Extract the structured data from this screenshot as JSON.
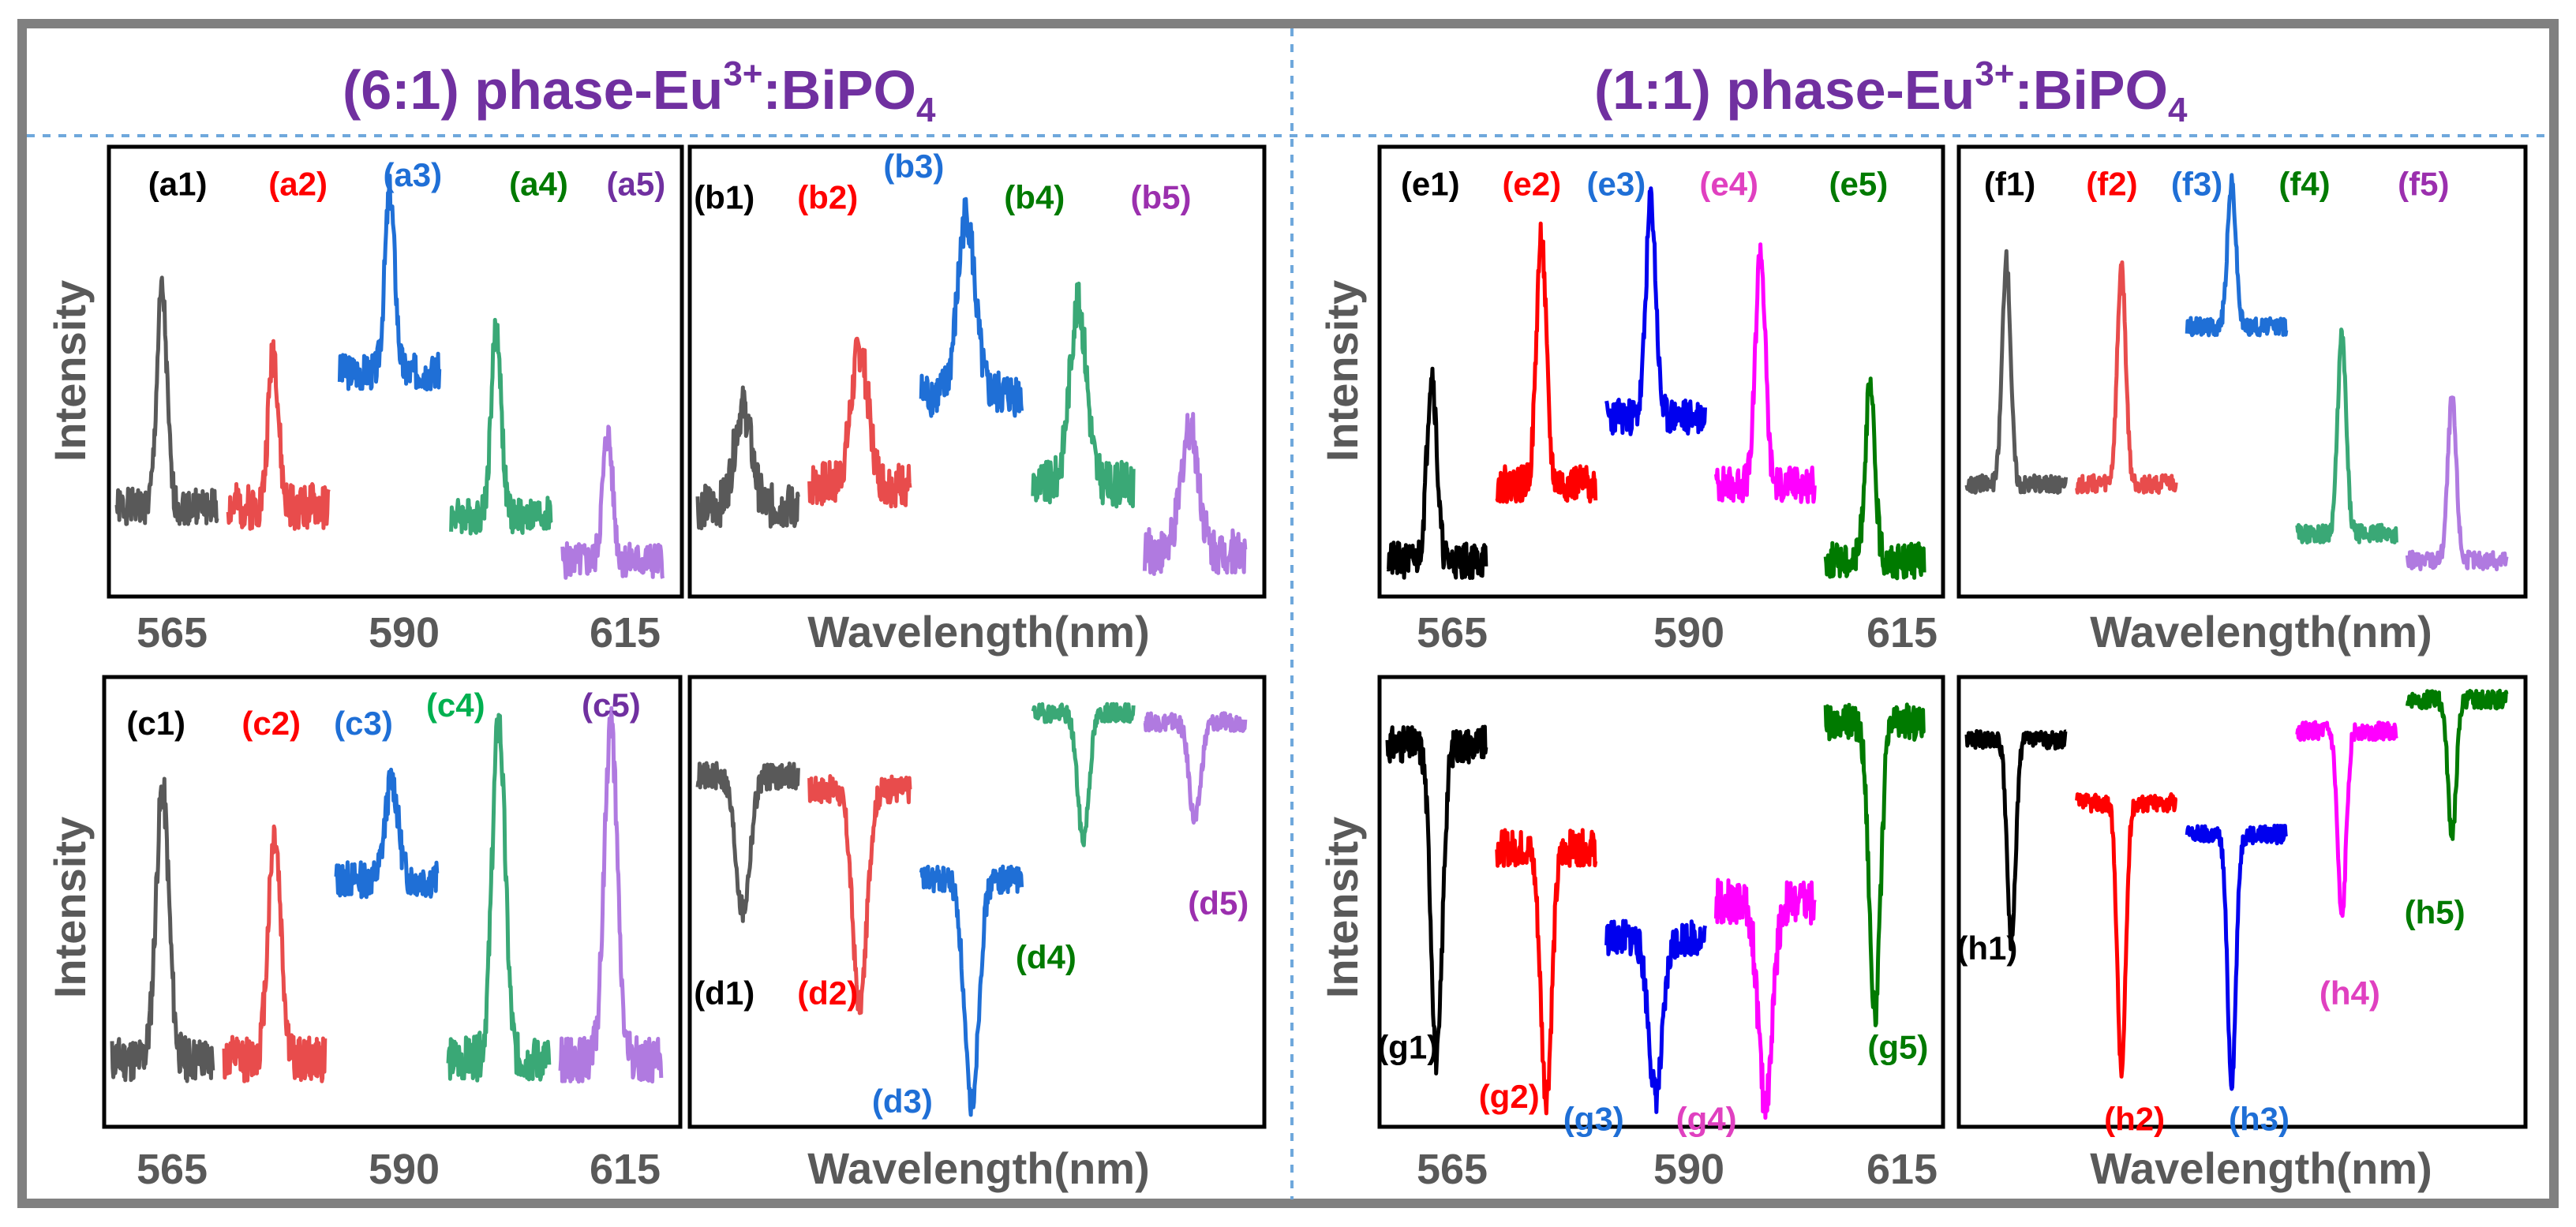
{
  "titles": {
    "left": {
      "prefix": "(6:1) phase-Eu",
      "sup": "3+",
      "mid": ":BiPO",
      "sub": "4"
    },
    "right": {
      "prefix": "(1:1) phase-Eu",
      "sup": "3+",
      "mid": ":BiPO",
      "sub": "4"
    }
  },
  "colors": {
    "title": "#7030a0",
    "frame": "#808080",
    "divider": "#6fa8dc",
    "axis_text": "#595959",
    "black": "#595959",
    "red": "#e84c4c",
    "blue": "#1f6fd6",
    "green": "#3aa876",
    "purple": "#b07ae0",
    "pureBlack": "#000000",
    "pureRed": "#ff0000",
    "pureBlue": "#0000ee",
    "magenta": "#ff00ff",
    "darkGreen": "#007a00"
  },
  "axis": {
    "ylabel": "Intensity",
    "xticks": [
      "565",
      "590",
      "615"
    ],
    "xlabel": "Wavelength(nm)"
  },
  "chart_data": {
    "type": "line",
    "x_unit": "relative index",
    "y_unit": "normalized intensity (0 = panel bottom, 1 = panel top)",
    "panels": [
      {
        "id": "a",
        "series": [
          {
            "name": "(a1)",
            "label_color": "#000000",
            "color": "#595959",
            "kind": "peak",
            "base": 0.2,
            "amp": 0.48,
            "pos": 0.45,
            "width": 0.07,
            "noise": 0.04,
            "seed": 1
          },
          {
            "name": "(a2)",
            "label_color": "#ff0000",
            "color": "#e84c4c",
            "kind": "peak",
            "base": 0.2,
            "amp": 0.35,
            "pos": 0.45,
            "width": 0.07,
            "noise": 0.05,
            "seed": 2
          },
          {
            "name": "(a3)",
            "label_color": "#1f6fd6",
            "color": "#1f6fd6",
            "kind": "peak",
            "base": 0.5,
            "amp": 0.4,
            "pos": 0.5,
            "width": 0.07,
            "noise": 0.04,
            "seed": 3
          },
          {
            "name": "(a4)",
            "label_color": "#007a00",
            "color": "#3aa876",
            "kind": "peak",
            "base": 0.18,
            "amp": 0.42,
            "pos": 0.45,
            "width": 0.07,
            "noise": 0.04,
            "seed": 4
          },
          {
            "name": "(a5)",
            "label_color": "#7030a0",
            "color": "#b07ae0",
            "kind": "peak",
            "base": 0.08,
            "amp": 0.28,
            "pos": 0.45,
            "width": 0.07,
            "noise": 0.04,
            "seed": 5
          }
        ]
      },
      {
        "id": "b",
        "series": [
          {
            "name": "(b1)",
            "label_color": "#000000",
            "color": "#595959",
            "kind": "peak",
            "base": 0.2,
            "amp": 0.22,
            "pos": 0.45,
            "width": 0.12,
            "noise": 0.05,
            "seed": 6
          },
          {
            "name": "(b2)",
            "label_color": "#ff0000",
            "color": "#e84c4c",
            "kind": "peak",
            "base": 0.25,
            "amp": 0.3,
            "pos": 0.5,
            "width": 0.12,
            "noise": 0.05,
            "seed": 7
          },
          {
            "name": "(b3)",
            "label_color": "#1f6fd6",
            "color": "#1f6fd6",
            "kind": "peak",
            "base": 0.45,
            "amp": 0.4,
            "pos": 0.45,
            "width": 0.12,
            "noise": 0.05,
            "seed": 8
          },
          {
            "name": "(b4)",
            "label_color": "#007a00",
            "color": "#3aa876",
            "kind": "peak",
            "base": 0.25,
            "amp": 0.4,
            "pos": 0.45,
            "width": 0.12,
            "noise": 0.05,
            "seed": 9
          },
          {
            "name": "(b5)",
            "label_color": "#9b2fae",
            "color": "#b07ae0",
            "kind": "peak",
            "base": 0.1,
            "amp": 0.28,
            "pos": 0.45,
            "width": 0.12,
            "noise": 0.05,
            "seed": 10
          }
        ]
      },
      {
        "id": "c",
        "series": [
          {
            "name": "(c1)",
            "label_color": "#000000",
            "color": "#595959",
            "kind": "peak",
            "base": 0.15,
            "amp": 0.6,
            "pos": 0.5,
            "width": 0.09,
            "noise": 0.05,
            "seed": 11
          },
          {
            "name": "(c2)",
            "label_color": "#ff0000",
            "color": "#e84c4c",
            "kind": "peak",
            "base": 0.15,
            "amp": 0.5,
            "pos": 0.5,
            "width": 0.09,
            "noise": 0.05,
            "seed": 12
          },
          {
            "name": "(c3)",
            "label_color": "#1f6fd6",
            "color": "#1f6fd6",
            "kind": "peak",
            "base": 0.55,
            "amp": 0.22,
            "pos": 0.55,
            "width": 0.09,
            "noise": 0.04,
            "seed": 13
          },
          {
            "name": "(c4)",
            "label_color": "#00b050",
            "color": "#3aa876",
            "kind": "peak",
            "base": 0.15,
            "amp": 0.75,
            "pos": 0.5,
            "width": 0.09,
            "noise": 0.05,
            "seed": 14
          },
          {
            "name": "(c5)",
            "label_color": "#7030a0",
            "color": "#b07ae0",
            "kind": "peak",
            "base": 0.15,
            "amp": 0.75,
            "pos": 0.5,
            "width": 0.09,
            "noise": 0.05,
            "seed": 15
          }
        ]
      },
      {
        "id": "d",
        "series": [
          {
            "name": "(d1)",
            "label_color": "#000000",
            "color": "#595959",
            "kind": "dip",
            "base": 0.78,
            "amp": 0.3,
            "pos": 0.45,
            "width": 0.1,
            "noise": 0.03,
            "seed": 16
          },
          {
            "name": "(d2)",
            "label_color": "#ff0000",
            "color": "#e84c4c",
            "kind": "dip",
            "base": 0.75,
            "amp": 0.48,
            "pos": 0.5,
            "width": 0.1,
            "noise": 0.03,
            "seed": 17
          },
          {
            "name": "(d3)",
            "label_color": "#1f6fd6",
            "color": "#1f6fd6",
            "kind": "dip",
            "base": 0.55,
            "amp": 0.5,
            "pos": 0.5,
            "width": 0.1,
            "noise": 0.03,
            "seed": 18
          },
          {
            "name": "(d4)",
            "label_color": "#007a00",
            "color": "#3aa876",
            "kind": "dip",
            "base": 0.92,
            "amp": 0.28,
            "pos": 0.5,
            "width": 0.08,
            "noise": 0.02,
            "seed": 19
          },
          {
            "name": "(d5)",
            "label_color": "#9b2fae",
            "color": "#b07ae0",
            "kind": "dip",
            "base": 0.9,
            "amp": 0.22,
            "pos": 0.5,
            "width": 0.08,
            "noise": 0.02,
            "seed": 20
          }
        ]
      },
      {
        "id": "e",
        "series": [
          {
            "name": "(e1)",
            "label_color": "#000000",
            "color": "#000000",
            "kind": "peak",
            "base": 0.08,
            "amp": 0.42,
            "pos": 0.45,
            "width": 0.07,
            "noise": 0.04,
            "seed": 21
          },
          {
            "name": "(e2)",
            "label_color": "#ff0000",
            "color": "#ff0000",
            "kind": "peak",
            "base": 0.25,
            "amp": 0.55,
            "pos": 0.45,
            "width": 0.07,
            "noise": 0.04,
            "seed": 22
          },
          {
            "name": "(e3)",
            "label_color": "#1f6fd6",
            "color": "#0000ee",
            "kind": "peak",
            "base": 0.4,
            "amp": 0.48,
            "pos": 0.45,
            "width": 0.07,
            "noise": 0.04,
            "seed": 23
          },
          {
            "name": "(e4)",
            "label_color": "#e040c0",
            "color": "#ff00ff",
            "kind": "peak",
            "base": 0.25,
            "amp": 0.52,
            "pos": 0.45,
            "width": 0.07,
            "noise": 0.04,
            "seed": 24
          },
          {
            "name": "(e5)",
            "label_color": "#007a00",
            "color": "#007a00",
            "kind": "peak",
            "base": 0.08,
            "amp": 0.38,
            "pos": 0.45,
            "width": 0.07,
            "noise": 0.04,
            "seed": 25
          }
        ]
      },
      {
        "id": "f",
        "series": [
          {
            "name": "(f1)",
            "label_color": "#000000",
            "color": "#595959",
            "kind": "peak",
            "base": 0.25,
            "amp": 0.5,
            "pos": 0.4,
            "width": 0.06,
            "noise": 0.02,
            "seed": 26
          },
          {
            "name": "(f2)",
            "label_color": "#ff0000",
            "color": "#e84c4c",
            "kind": "peak",
            "base": 0.25,
            "amp": 0.48,
            "pos": 0.45,
            "width": 0.06,
            "noise": 0.02,
            "seed": 27
          },
          {
            "name": "(f3)",
            "label_color": "#1f6fd6",
            "color": "#1f6fd6",
            "kind": "peak",
            "base": 0.6,
            "amp": 0.32,
            "pos": 0.45,
            "width": 0.06,
            "noise": 0.02,
            "seed": 28
          },
          {
            "name": "(f4)",
            "label_color": "#007a00",
            "color": "#3aa876",
            "kind": "peak",
            "base": 0.14,
            "amp": 0.44,
            "pos": 0.45,
            "width": 0.06,
            "noise": 0.02,
            "seed": 29
          },
          {
            "name": "(f5)",
            "label_color": "#9b2fae",
            "color": "#b07ae0",
            "kind": "peak",
            "base": 0.08,
            "amp": 0.36,
            "pos": 0.45,
            "width": 0.06,
            "noise": 0.02,
            "seed": 30
          }
        ]
      },
      {
        "id": "g",
        "series": [
          {
            "name": "(g1)",
            "label_color": "#000000",
            "color": "#000000",
            "kind": "dip",
            "base": 0.85,
            "amp": 0.7,
            "pos": 0.5,
            "width": 0.08,
            "noise": 0.04,
            "seed": 31
          },
          {
            "name": "(g2)",
            "label_color": "#ff0000",
            "color": "#ff0000",
            "kind": "dip",
            "base": 0.62,
            "amp": 0.55,
            "pos": 0.5,
            "width": 0.08,
            "noise": 0.04,
            "seed": 32
          },
          {
            "name": "(g3)",
            "label_color": "#1f6fd6",
            "color": "#0000ee",
            "kind": "dip",
            "base": 0.42,
            "amp": 0.35,
            "pos": 0.5,
            "width": 0.1,
            "noise": 0.04,
            "seed": 33
          },
          {
            "name": "(g4)",
            "label_color": "#e040c0",
            "color": "#ff00ff",
            "kind": "dip",
            "base": 0.5,
            "amp": 0.45,
            "pos": 0.5,
            "width": 0.1,
            "noise": 0.05,
            "seed": 34
          },
          {
            "name": "(g5)",
            "label_color": "#007a00",
            "color": "#007a00",
            "kind": "dip",
            "base": 0.9,
            "amp": 0.65,
            "pos": 0.5,
            "width": 0.08,
            "noise": 0.04,
            "seed": 35
          }
        ]
      },
      {
        "id": "h",
        "series": [
          {
            "name": "(h1)",
            "label_color": "#000000",
            "color": "#000000",
            "kind": "dip",
            "base": 0.86,
            "amp": 0.45,
            "pos": 0.45,
            "width": 0.06,
            "noise": 0.02,
            "seed": 36
          },
          {
            "name": "(h2)",
            "label_color": "#ff0000",
            "color": "#ff0000",
            "kind": "dip",
            "base": 0.72,
            "amp": 0.6,
            "pos": 0.45,
            "width": 0.06,
            "noise": 0.02,
            "seed": 37
          },
          {
            "name": "(h3)",
            "label_color": "#1f6fd6",
            "color": "#0000ee",
            "kind": "dip",
            "base": 0.65,
            "amp": 0.55,
            "pos": 0.45,
            "width": 0.06,
            "noise": 0.02,
            "seed": 38
          },
          {
            "name": "(h4)",
            "label_color": "#e040c0",
            "color": "#ff00ff",
            "kind": "dip",
            "base": 0.88,
            "amp": 0.42,
            "pos": 0.45,
            "width": 0.06,
            "noise": 0.02,
            "seed": 39
          },
          {
            "name": "(h5)",
            "label_color": "#007a00",
            "color": "#007a00",
            "kind": "dip",
            "base": 0.95,
            "amp": 0.3,
            "pos": 0.45,
            "width": 0.06,
            "noise": 0.02,
            "seed": 40
          }
        ]
      }
    ]
  }
}
